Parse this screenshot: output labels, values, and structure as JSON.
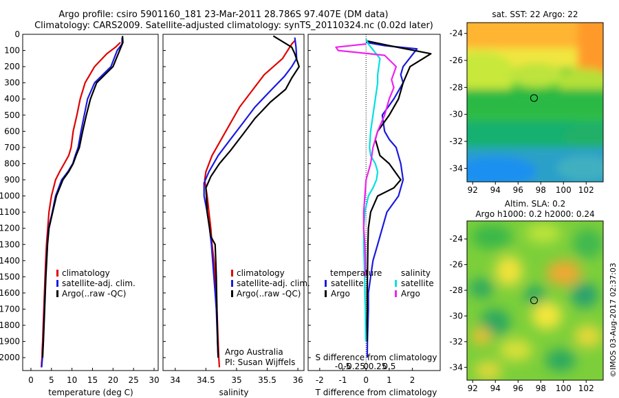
{
  "header": {
    "title_line1": "Argo profile: csiro 5901160_181 23-Mar-2011 28.786S 97.407E (DM data)",
    "title_line2": "Climatology: CARS2009. Satellite-adjusted climatology: synTS_20110324.nc (0.02d later)"
  },
  "colors": {
    "climatology": "#e00000",
    "satellite_adj": "#1a1ae0",
    "argo": "#000000",
    "salinity_satellite": "#00e0e0",
    "salinity_argo": "#ee22ee"
  },
  "chart_data": [
    {
      "type": "line",
      "panel": "temperature",
      "xlabel": "temperature (deg C)",
      "ylabel": "",
      "xlim": [
        -2,
        31
      ],
      "ylim": [
        2080,
        0
      ],
      "xticks": [
        0,
        5,
        10,
        15,
        20,
        25,
        30
      ],
      "yticks": [
        0,
        100,
        200,
        300,
        400,
        500,
        600,
        700,
        800,
        900,
        1000,
        1100,
        1200,
        1300,
        1400,
        1500,
        1600,
        1700,
        1800,
        1900,
        2000
      ],
      "legend": [
        "climatology",
        "satellite-adj. clim.",
        "Argo(..raw -QC)"
      ],
      "series": [
        {
          "name": "climatology",
          "color": "#e00000",
          "x": [
            21.8,
            20.6,
            18.5,
            15.5,
            13.2,
            12.0,
            11.2,
            10.3,
            9.8,
            9.2,
            8.1,
            7.0,
            6.0,
            5.0,
            4.4,
            4.1,
            3.8,
            3.6,
            3.45,
            3.3,
            3.15,
            3.0,
            2.85,
            2.75,
            2.7,
            2.6,
            2.55
          ],
          "y": [
            50,
            80,
            120,
            200,
            300,
            400,
            500,
            600,
            700,
            750,
            800,
            850,
            900,
            1000,
            1100,
            1200,
            1300,
            1400,
            1500,
            1600,
            1700,
            1800,
            1900,
            1950,
            2000,
            2030,
            2060
          ]
        },
        {
          "name": "satellite-adj. clim.",
          "color": "#1a1ae0",
          "x": [
            22.2,
            22.2,
            21.0,
            19.5,
            15.5,
            13.8,
            13.0,
            12.2,
            11.5,
            10.8,
            10.2,
            9.0,
            7.5,
            6.0,
            5.2,
            4.3,
            4.0,
            3.8,
            3.6,
            3.45,
            3.3,
            3.15,
            3.0,
            2.9,
            2.8,
            2.7,
            2.6
          ],
          "y": [
            20,
            60,
            100,
            200,
            300,
            400,
            500,
            600,
            700,
            750,
            800,
            850,
            900,
            1000,
            1100,
            1200,
            1300,
            1400,
            1500,
            1600,
            1700,
            1800,
            1900,
            1950,
            2000,
            2030,
            2060
          ]
        },
        {
          "name": "Argo(..raw -QC)",
          "color": "#000000",
          "x": [
            22.3,
            22.4,
            21.6,
            20.0,
            16.0,
            14.5,
            13.5,
            12.6,
            11.8,
            11.0,
            10.3,
            9.2,
            7.8,
            6.2,
            5.3,
            4.4,
            4.05,
            3.85,
            3.65,
            3.5,
            3.35,
            3.2,
            3.05,
            2.95,
            2.85
          ],
          "y": [
            10,
            50,
            100,
            200,
            300,
            400,
            500,
            600,
            700,
            750,
            800,
            850,
            900,
            1000,
            1100,
            1200,
            1300,
            1400,
            1500,
            1600,
            1700,
            1800,
            1900,
            1950,
            2000
          ]
        }
      ]
    },
    {
      "type": "line",
      "panel": "salinity",
      "xlabel": "salinity",
      "ylabel": "",
      "xlim": [
        33.8,
        36.1
      ],
      "ylim": [
        2080,
        0
      ],
      "xticks": [
        34,
        34.5,
        35,
        35.5,
        36
      ],
      "xticklabels": [
        "34",
        "34.5",
        "35",
        "35.5",
        "36"
      ],
      "legend": [
        "climatology",
        "satellite-adj. clim.",
        "Argo(..raw -QC)"
      ],
      "annotation": [
        "Argo Australia",
        "PI: Susan Wijffels"
      ],
      "series": [
        {
          "name": "climatology",
          "color": "#e00000",
          "x": [
            35.95,
            35.9,
            35.75,
            35.45,
            35.25,
            35.05,
            34.9,
            34.75,
            34.6,
            34.5,
            34.48,
            34.52,
            34.55,
            34.58,
            34.6,
            34.63,
            34.65,
            34.67,
            34.68,
            34.69,
            34.7,
            34.71,
            34.72
          ],
          "y": [
            40,
            60,
            150,
            250,
            350,
            450,
            550,
            650,
            750,
            850,
            900,
            1000,
            1100,
            1200,
            1300,
            1400,
            1500,
            1600,
            1700,
            1800,
            1900,
            2000,
            2060
          ]
        },
        {
          "name": "satellite-adj. clim.",
          "color": "#1a1ae0",
          "x": [
            35.95,
            35.97,
            35.98,
            35.9,
            35.78,
            35.55,
            35.3,
            35.1,
            34.9,
            34.7,
            34.55,
            34.47,
            34.47,
            34.52,
            34.56,
            34.59,
            34.61,
            34.63,
            34.65,
            34.67,
            34.68,
            34.69,
            34.7
          ],
          "y": [
            20,
            80,
            150,
            200,
            260,
            350,
            450,
            550,
            650,
            750,
            850,
            920,
            1000,
            1100,
            1200,
            1300,
            1400,
            1500,
            1600,
            1700,
            1800,
            1900,
            2000
          ]
        },
        {
          "name": "Argo(..raw -QC)",
          "color": "#000000",
          "x": [
            35.6,
            35.9,
            35.95,
            36.02,
            35.9,
            35.8,
            35.55,
            35.3,
            35.1,
            34.9,
            34.72,
            34.58,
            34.5,
            34.52,
            34.58,
            34.65,
            34.66,
            34.67,
            34.68,
            34.69,
            34.7
          ],
          "y": [
            10,
            80,
            120,
            200,
            270,
            340,
            420,
            520,
            620,
            720,
            800,
            880,
            950,
            1100,
            1250,
            1300,
            1400,
            1500,
            1700,
            1900,
            2000
          ]
        }
      ]
    },
    {
      "type": "line",
      "panel": "difference",
      "xlabel": "T difference from climatology",
      "xlabel2": "S difference from climatology",
      "xlim": [
        -2.5,
        3.2
      ],
      "ylim": [
        2080,
        0
      ],
      "xticks": [
        -2,
        -1,
        0,
        1,
        2
      ],
      "xticks_s": [
        -0.5,
        -0.25,
        0,
        0.25,
        0.5
      ],
      "xticklabels_s": [
        "-0.5",
        "-0.25",
        "0",
        "0.25",
        "0.5"
      ],
      "legend_titles": [
        "temperature",
        "salinity"
      ],
      "legend": [
        "satellite",
        "Argo",
        "satellite",
        "Argo"
      ],
      "series": [
        {
          "name": "satellite",
          "group": "temperature",
          "color": "#1a1ae0",
          "x": [
            0.0,
            0.8,
            2.2,
            1.6,
            1.5,
            1.6,
            1.2,
            0.7,
            0.8,
            1.0,
            1.3,
            1.5,
            1.6,
            1.4,
            0.9,
            0.7,
            0.5,
            0.3,
            0.2,
            0.1,
            0.1,
            0.08,
            0.06,
            0.05
          ],
          "y": [
            50,
            70,
            90,
            200,
            250,
            300,
            400,
            500,
            600,
            650,
            700,
            800,
            900,
            1000,
            1100,
            1200,
            1300,
            1400,
            1500,
            1600,
            1700,
            1800,
            1900,
            2000
          ]
        },
        {
          "name": "Argo",
          "group": "temperature",
          "color": "#000000",
          "x": [
            0.0,
            1.0,
            2.8,
            1.9,
            1.6,
            1.4,
            1.0,
            0.5,
            0.4,
            0.6,
            1.0,
            1.5,
            1.2,
            0.5,
            0.2,
            0.1,
            0.08,
            0.07,
            0.06,
            0.05,
            0.05,
            0.04,
            0.04
          ],
          "y": [
            40,
            70,
            120,
            200,
            300,
            400,
            500,
            600,
            650,
            750,
            800,
            900,
            950,
            1000,
            1100,
            1200,
            1300,
            1400,
            1500,
            1600,
            1700,
            1800,
            1900
          ]
        },
        {
          "name": "satellite",
          "group": "salinity",
          "color": "#00e0e0",
          "x": [
            0.0,
            0.1,
            0.6,
            0.5,
            0.5,
            0.4,
            0.3,
            0.2,
            0.15,
            0.2,
            0.4,
            0.5,
            0.45,
            0.3,
            0.1,
            -0.05,
            -0.1,
            -0.1,
            -0.08,
            -0.06,
            -0.05,
            -0.03,
            -0.02,
            -0.01
          ],
          "y": [
            30,
            60,
            150,
            250,
            300,
            400,
            500,
            600,
            700,
            750,
            800,
            850,
            900,
            950,
            1000,
            1100,
            1200,
            1300,
            1400,
            1500,
            1600,
            1700,
            1800,
            1900
          ]
        },
        {
          "name": "Argo",
          "group": "salinity",
          "color": "#ee22ee",
          "x": [
            0.0,
            -1.3,
            -1.2,
            0.8,
            1.3,
            1.1,
            1.2,
            1.0,
            0.8,
            0.5,
            0.3,
            0.2,
            0.0,
            -0.05,
            -0.1,
            -0.1,
            -0.05,
            -0.03,
            -0.02
          ],
          "y": [
            60,
            80,
            100,
            130,
            200,
            280,
            330,
            400,
            500,
            600,
            700,
            800,
            900,
            1000,
            1100,
            1200,
            1300,
            1400,
            1500
          ]
        }
      ]
    },
    {
      "type": "heatmap",
      "panel": "sat_sst",
      "title": "sat. SST: 22 Argo: 22",
      "xticks": [
        92,
        94,
        96,
        98,
        100,
        102
      ],
      "yticks": [
        -24,
        -26,
        -28,
        -30,
        -32,
        -34
      ],
      "xlim": [
        91.5,
        103.5
      ],
      "ylim": [
        -35,
        -23.2
      ],
      "argo_position": [
        97.407,
        -28.786
      ]
    },
    {
      "type": "heatmap",
      "panel": "altim_sla",
      "title_line1": "Altim. SLA: 0.2",
      "title_line2": "Argo h1000: 0.2 h2000: 0.24",
      "xticks": [
        92,
        94,
        96,
        98,
        100,
        102
      ],
      "yticks": [
        -24,
        -26,
        -28,
        -30,
        -32,
        -34
      ],
      "xlim": [
        91.5,
        103.5
      ],
      "ylim": [
        -35,
        -22.6
      ],
      "argo_position": [
        97.407,
        -28.786
      ]
    }
  ],
  "footer": {
    "stamp": "©IMOS 03-Aug-2017 02:37:03"
  }
}
